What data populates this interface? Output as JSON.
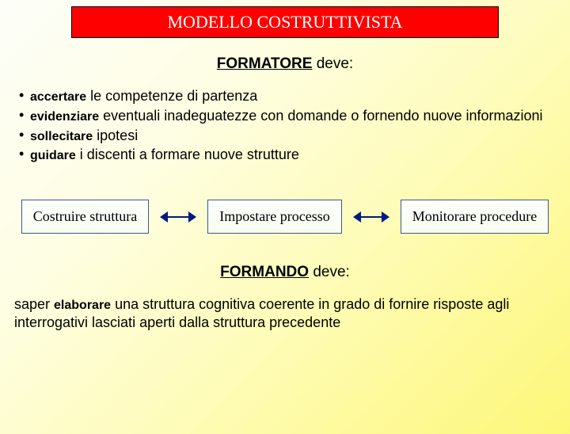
{
  "title": "MODELLO COSTRUTTIVISTA",
  "formatore": {
    "label": "FORMATORE",
    "verb": " deve:"
  },
  "bullets": [
    {
      "bold": "accertare",
      "rest": " le competenze di partenza"
    },
    {
      "bold": "evidenziare",
      "rest": " eventuali inadeguatezze con domande o fornendo nuove informazioni"
    },
    {
      "bold": "sollecitare",
      "rest": " ipotesi"
    },
    {
      "bold": "guidare",
      "rest": " i discenti a formare nuove strutture"
    }
  ],
  "boxes": [
    "Costruire struttura",
    "Impostare processo",
    "Monitorare procedure"
  ],
  "formando": {
    "label": "FORMANDO",
    "verb": " deve:"
  },
  "paragraph": {
    "pre": "saper ",
    "bold": "elaborare",
    "post": " una struttura cognitiva coerente in grado di fornire risposte agli interrogativi lasciati aperti dalla struttura precedente"
  },
  "colors": {
    "banner_bg": "#ff0000",
    "banner_text": "#ffffff",
    "box_border": "#3b5b8c",
    "arrow": "#001a80"
  }
}
